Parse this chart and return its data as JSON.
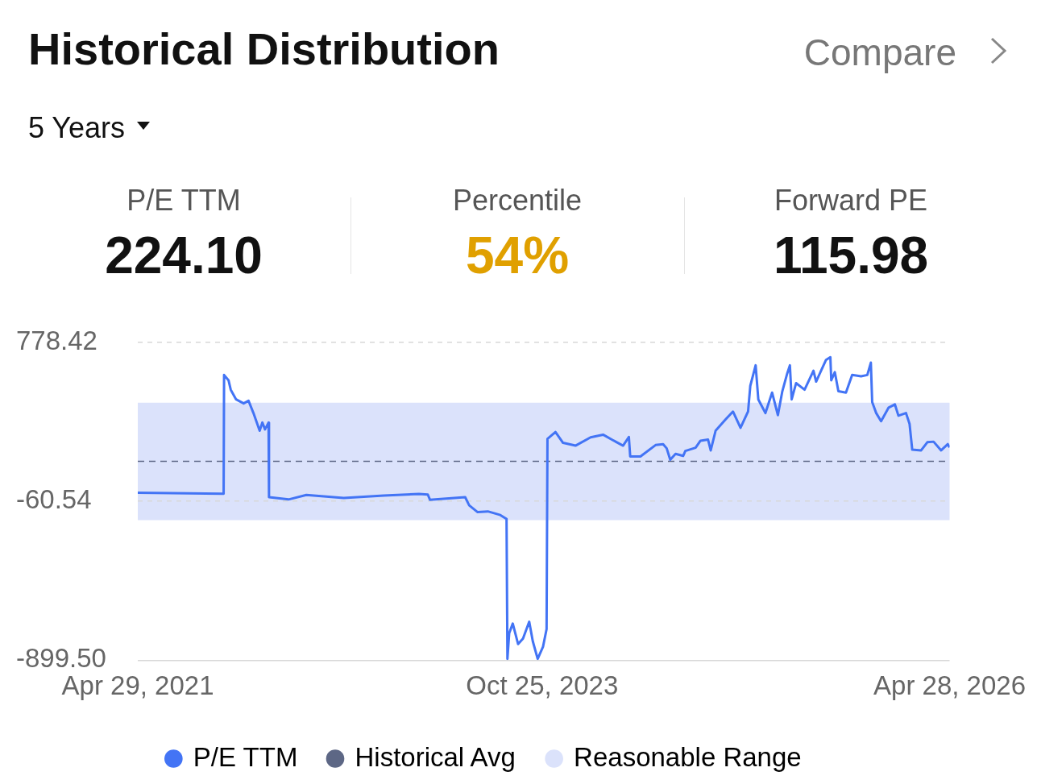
{
  "chart_data": {
    "type": "line",
    "title": "Historical Distribution",
    "annotations": [
      "Compare",
      "5 Years",
      "P/E TTM",
      "224.10",
      "Percentile",
      "54%",
      "Forward PE",
      "115.98"
    ],
    "x": [
      "2021-04-29",
      "2021-11-08",
      "2021-11-09",
      "2021-11-19",
      "2021-11-24",
      "2021-12-06",
      "2021-12-23",
      "2022-01-03",
      "2022-01-14",
      "2022-01-28",
      "2022-02-03",
      "2022-02-09",
      "2022-02-17",
      "2022-02-18",
      "2022-04-03",
      "2022-05-13",
      "2022-08-05",
      "2022-11-03",
      "2023-01-21",
      "2023-02-10",
      "2023-02-15",
      "2023-05-05",
      "2023-05-14",
      "2023-06-02",
      "2023-06-25",
      "2023-07-23",
      "2023-08-06",
      "2023-08-08",
      "2023-08-12",
      "2023-08-20",
      "2023-09-01",
      "2023-09-12",
      "2023-09-26",
      "2023-10-04",
      "2023-10-15",
      "2023-10-27",
      "2023-11-04",
      "2023-11-06",
      "2023-11-24",
      "2023-12-11",
      "2024-01-08",
      "2024-02-11",
      "2024-03-10",
      "2024-04-01",
      "2024-04-24",
      "2024-05-07",
      "2024-05-10",
      "2024-06-02",
      "2024-07-06",
      "2024-07-23",
      "2024-07-31",
      "2024-08-08",
      "2024-08-20",
      "2024-09-06",
      "2024-09-11",
      "2024-10-04",
      "2024-10-15",
      "2024-11-01",
      "2024-11-07",
      "2024-11-18",
      "2024-12-10",
      "2024-12-27",
      "2025-01-13",
      "2025-01-30",
      "2025-02-04",
      "2025-02-16",
      "2025-02-22",
      "2025-03-10",
      "2025-03-25",
      "2025-04-07",
      "2025-04-17",
      "2025-04-28",
      "2025-05-04",
      "2025-05-08",
      "2025-05-18",
      "2025-06-06",
      "2025-06-26",
      "2025-07-02",
      "2025-07-24",
      "2025-08-03",
      "2025-08-05",
      "2025-08-13",
      "2025-08-21",
      "2025-09-07",
      "2025-09-21",
      "2025-10-11",
      "2025-10-25",
      "2025-11-02",
      "2025-11-05",
      "2025-11-14",
      "2025-11-25",
      "2025-12-12",
      "2025-12-26",
      "2026-01-03",
      "2026-01-20",
      "2026-01-28",
      "2026-02-03",
      "2026-02-23",
      "2026-03-09",
      "2026-03-23",
      "2026-04-09",
      "2026-04-24",
      "2026-04-28"
    ],
    "series": [
      {
        "name": "P/E TTM",
        "color": "#4374f5",
        "values": [
          -15,
          -21,
          606,
          578,
          528,
          477,
          456,
          470,
          405,
          312,
          355,
          319,
          355,
          -39,
          -51,
          -27,
          -43,
          -30,
          -22,
          -25,
          -53,
          -39,
          -82,
          -118,
          -114,
          -133,
          -154,
          -892,
          -756,
          -706,
          -814,
          -785,
          -696,
          -799,
          -892,
          -828,
          -735,
          269,
          305,
          248,
          233,
          277,
          291,
          262,
          233,
          279,
          176,
          176,
          236,
          241,
          219,
          159,
          190,
          179,
          205,
          222,
          259,
          265,
          208,
          312,
          370,
          413,
          327,
          413,
          549,
          657,
          477,
          405,
          513,
          394,
          520,
          614,
          657,
          477,
          563,
          528,
          628,
          571,
          685,
          700,
          578,
          621,
          520,
          513,
          606,
          599,
          606,
          671,
          463,
          405,
          362,
          434,
          451,
          391,
          405,
          348,
          212,
          208,
          251,
          254,
          208,
          241,
          224
        ]
      }
    ],
    "xlim": [
      "2021-04-29",
      "2026-04-28"
    ],
    "xticks": [
      {
        "value": "2021-04-29",
        "label": "Apr 29, 2021"
      },
      {
        "value": "2023-10-25",
        "label": "Oct 25, 2023"
      },
      {
        "value": "2026-04-28",
        "label": "Apr 28, 2026"
      }
    ],
    "ylim": [
      -899.5,
      778.42
    ],
    "yticks": [
      {
        "value": 778.42,
        "label": "778.42"
      },
      {
        "value": -60.54,
        "label": "-60.54"
      },
      {
        "value": -899.5,
        "label": "-899.50"
      }
    ],
    "ref_lines": [
      {
        "axis": "y",
        "value": 150,
        "label": "Historical Avg",
        "color": "#5d6785",
        "line_style": "dashed"
      }
    ],
    "bands": [
      {
        "axis": "y",
        "from": -160,
        "to": 460,
        "label": "Reasonable Range",
        "color": "#dbe2fb"
      }
    ],
    "grid": "y",
    "legend": "bottom"
  }
}
